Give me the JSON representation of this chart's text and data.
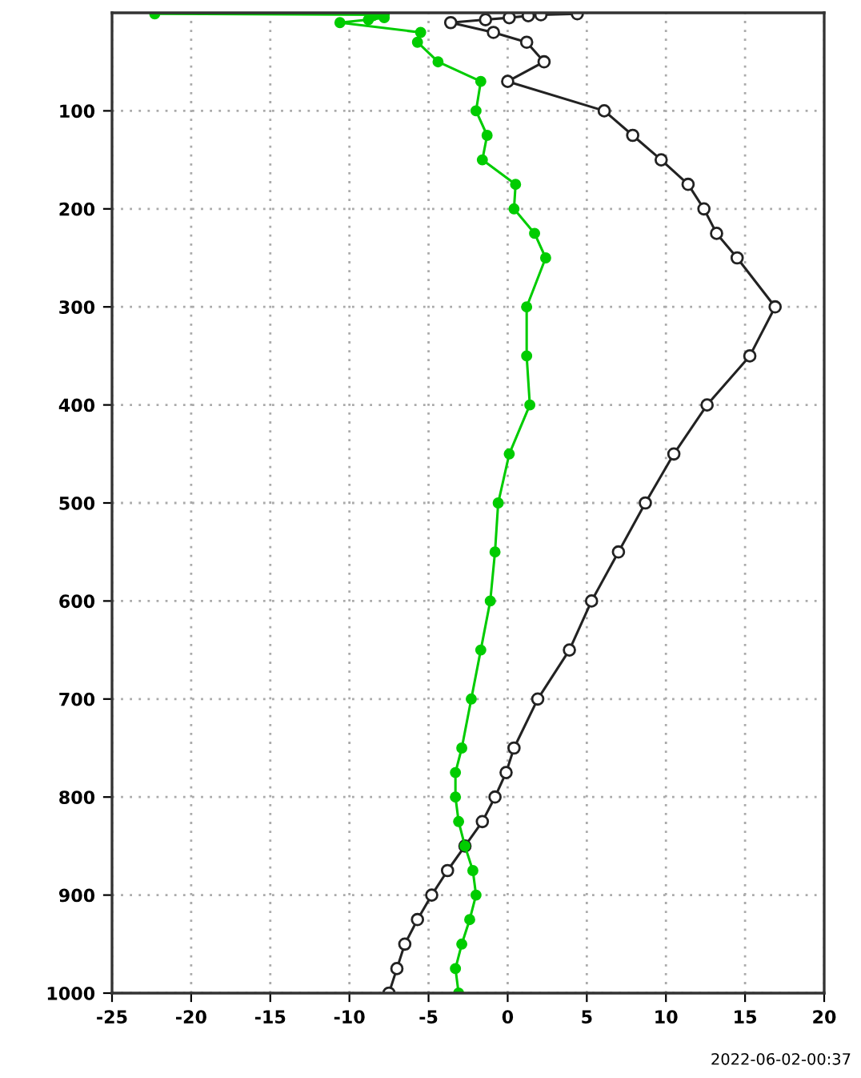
{
  "chart_data": {
    "type": "line",
    "xlim": [
      -25,
      20
    ],
    "xticks": [
      -25,
      -20,
      -15,
      -10,
      -5,
      0,
      5,
      10,
      15,
      20
    ],
    "ylim": [
      1000,
      0
    ],
    "yticks": [
      100,
      200,
      300,
      400,
      500,
      600,
      700,
      800,
      900,
      1000
    ],
    "grid": true,
    "legend": false,
    "line_style": "solid",
    "annotations": [
      "2022-06-02-00:37"
    ],
    "series": [
      {
        "color": "#222222",
        "marker": "circle",
        "x": [
          -7.5,
          -7.0,
          -6.5,
          -5.7,
          -4.8,
          -3.8,
          -2.7,
          -1.6,
          -0.8,
          -0.1,
          0.4,
          1.9,
          3.9,
          5.3,
          7.0,
          8.7,
          10.5,
          12.6,
          15.3,
          16.9,
          14.5,
          13.2,
          12.4,
          11.4,
          9.7,
          7.9,
          6.1,
          0.0,
          2.3,
          1.2,
          -0.9,
          -3.6,
          -1.4,
          0.1,
          1.3,
          2.1,
          4.4
        ],
        "values": [
          1000,
          975,
          950,
          925,
          900,
          875,
          850,
          825,
          800,
          775,
          750,
          700,
          650,
          600,
          550,
          500,
          450,
          400,
          350,
          300,
          250,
          225,
          200,
          175,
          150,
          125,
          100,
          70,
          50,
          30,
          20,
          10,
          7,
          5,
          3,
          2,
          1
        ]
      },
      {
        "color": "#00cc00",
        "marker": "circle",
        "x": [
          -3.1,
          -3.3,
          -2.9,
          -2.4,
          -2.0,
          -2.2,
          -2.7,
          -3.1,
          -3.3,
          -3.3,
          -2.9,
          -2.3,
          -1.7,
          -1.1,
          -0.8,
          -0.6,
          0.1,
          1.4,
          1.2,
          1.2,
          2.4,
          1.7,
          0.4,
          0.5,
          -1.6,
          -1.3,
          -2.0,
          -1.7,
          -4.4,
          -5.7,
          -5.5,
          -10.6,
          -8.8,
          -7.8,
          -8.5,
          -7.8,
          -22.3
        ],
        "values": [
          1000,
          975,
          950,
          925,
          900,
          875,
          850,
          825,
          800,
          775,
          750,
          700,
          650,
          600,
          550,
          500,
          450,
          400,
          350,
          300,
          250,
          225,
          200,
          175,
          150,
          125,
          100,
          70,
          50,
          30,
          20,
          10,
          7,
          5,
          3,
          2,
          1
        ]
      }
    ]
  }
}
